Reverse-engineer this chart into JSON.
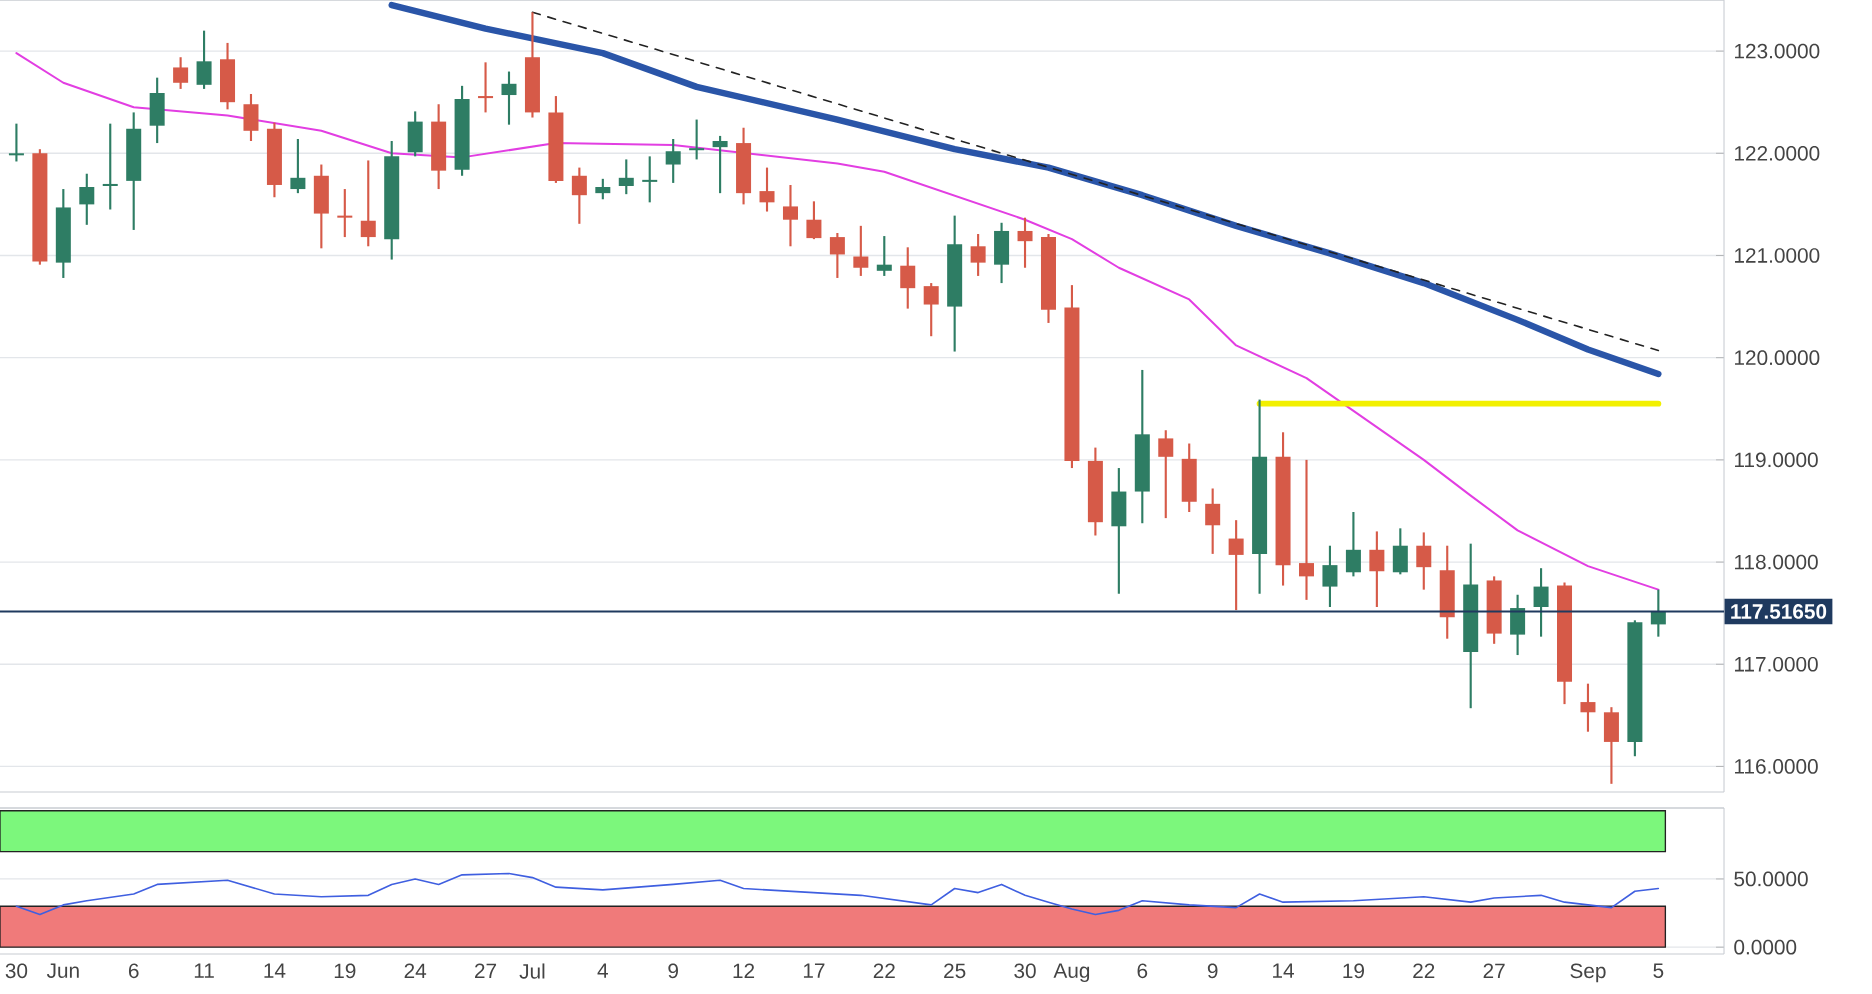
{
  "chart_data": [
    {
      "type": "candlestick",
      "categories": [
        null,
        null,
        null,
        null,
        null,
        null,
        null,
        null,
        null,
        null,
        null,
        null,
        null,
        null,
        null,
        null,
        null,
        null,
        null,
        null,
        null,
        null,
        null,
        null,
        null,
        null,
        null,
        null,
        null,
        null,
        null,
        null,
        null,
        null,
        null,
        null,
        null,
        null,
        null,
        null,
        null,
        null,
        null,
        null,
        null,
        null,
        null,
        null,
        null,
        null,
        null,
        null,
        null,
        null,
        null,
        null,
        null,
        null,
        null,
        null,
        null,
        null,
        null,
        null,
        null,
        null,
        null,
        null,
        null,
        null,
        null
      ],
      "ohlc": [
        [
          121.98,
          122.29,
          121.92,
          122.0
        ],
        [
          122.0,
          122.04,
          120.91,
          120.94
        ],
        [
          120.93,
          121.65,
          120.78,
          121.47
        ],
        [
          121.5,
          121.8,
          121.3,
          121.67
        ],
        [
          121.68,
          122.29,
          121.45,
          121.7
        ],
        [
          121.73,
          122.4,
          121.25,
          122.24
        ],
        [
          122.27,
          122.74,
          122.1,
          122.59
        ],
        [
          122.84,
          122.94,
          122.63,
          122.69
        ],
        [
          122.67,
          123.2,
          122.63,
          122.9
        ],
        [
          122.92,
          123.08,
          122.43,
          122.5
        ],
        [
          122.48,
          122.58,
          122.12,
          122.22
        ],
        [
          122.24,
          122.3,
          121.57,
          121.69
        ],
        [
          121.65,
          122.14,
          121.61,
          121.76
        ],
        [
          121.78,
          121.89,
          121.07,
          121.41
        ],
        [
          121.39,
          121.65,
          121.18,
          121.37
        ],
        [
          121.34,
          121.93,
          121.09,
          121.18
        ],
        [
          121.16,
          122.12,
          120.96,
          121.97
        ],
        [
          122.01,
          122.41,
          121.97,
          122.31
        ],
        [
          122.31,
          122.48,
          121.65,
          121.83
        ],
        [
          121.84,
          122.66,
          121.78,
          122.53
        ],
        [
          122.56,
          122.89,
          122.4,
          122.54
        ],
        [
          122.57,
          122.8,
          122.28,
          122.68
        ],
        [
          122.94,
          123.38,
          122.35,
          122.4
        ],
        [
          122.4,
          122.56,
          121.71,
          121.73
        ],
        [
          121.78,
          121.86,
          121.31,
          121.59
        ],
        [
          121.61,
          121.75,
          121.55,
          121.67
        ],
        [
          121.68,
          121.94,
          121.6,
          121.76
        ],
        [
          121.72,
          121.97,
          121.52,
          121.74
        ],
        [
          121.89,
          122.14,
          121.71,
          122.02
        ],
        [
          122.03,
          122.33,
          121.94,
          122.05
        ],
        [
          122.06,
          122.17,
          121.61,
          122.12
        ],
        [
          122.1,
          122.25,
          121.5,
          121.61
        ],
        [
          121.63,
          121.86,
          121.43,
          121.52
        ],
        [
          121.48,
          121.69,
          121.09,
          121.35
        ],
        [
          121.35,
          121.53,
          121.16,
          121.17
        ],
        [
          121.18,
          121.22,
          120.78,
          121.01
        ],
        [
          120.99,
          121.29,
          120.8,
          120.88
        ],
        [
          120.85,
          121.19,
          120.8,
          120.91
        ],
        [
          120.9,
          121.08,
          120.48,
          120.68
        ],
        [
          120.7,
          120.73,
          120.21,
          120.52
        ],
        [
          120.5,
          121.39,
          120.06,
          121.11
        ],
        [
          121.09,
          121.21,
          120.8,
          120.93
        ],
        [
          120.91,
          121.32,
          120.73,
          121.24
        ],
        [
          121.24,
          121.37,
          120.88,
          121.14
        ],
        [
          121.18,
          121.21,
          120.34,
          120.47
        ],
        [
          120.49,
          120.71,
          118.92,
          118.99
        ],
        [
          118.99,
          119.12,
          118.26,
          118.39
        ],
        [
          118.35,
          118.92,
          117.69,
          118.69
        ],
        [
          118.69,
          119.88,
          118.38,
          119.25
        ],
        [
          119.21,
          119.29,
          118.43,
          119.03
        ],
        [
          119.01,
          119.16,
          118.49,
          118.59
        ],
        [
          118.57,
          118.72,
          118.08,
          118.36
        ],
        [
          118.23,
          118.41,
          117.53,
          118.07
        ],
        [
          118.08,
          119.59,
          117.69,
          119.03
        ],
        [
          119.03,
          119.27,
          117.77,
          117.97
        ],
        [
          117.99,
          119.0,
          117.63,
          117.86
        ],
        [
          117.76,
          118.16,
          117.56,
          117.97
        ],
        [
          117.9,
          118.49,
          117.86,
          118.12
        ],
        [
          118.12,
          118.3,
          117.56,
          117.91
        ],
        [
          117.9,
          118.33,
          117.88,
          118.16
        ],
        [
          118.16,
          118.29,
          117.73,
          117.95
        ],
        [
          117.92,
          118.16,
          117.25,
          117.46
        ],
        [
          117.12,
          118.18,
          116.57,
          117.78
        ],
        [
          117.82,
          117.86,
          117.2,
          117.3
        ],
        [
          117.29,
          117.68,
          117.09,
          117.55
        ],
        [
          117.56,
          117.94,
          117.27,
          117.76
        ],
        [
          117.77,
          117.8,
          116.61,
          116.83
        ],
        [
          116.63,
          116.81,
          116.34,
          116.53
        ],
        [
          116.53,
          116.58,
          115.83,
          116.24
        ],
        [
          116.24,
          117.43,
          116.1,
          117.41
        ],
        [
          117.39,
          117.73,
          117.27,
          117.52
        ]
      ],
      "colors": [
        "#2e7d64",
        "#d65a48",
        "#2e7d64",
        "#2e7d64",
        "#2e7d64",
        "#2e7d64",
        "#2e7d64",
        "#d65a48",
        "#2e7d64",
        "#d65a48",
        "#d65a48",
        "#d65a48",
        "#2e7d64",
        "#d65a48",
        "#d65a48",
        "#d65a48",
        "#2e7d64",
        "#2e7d64",
        "#d65a48",
        "#2e7d64",
        "#d65a48",
        "#2e7d64",
        "#d65a48",
        "#d65a48",
        "#d65a48",
        "#2e7d64",
        "#2e7d64",
        "#2e7d64",
        "#2e7d64",
        "#2e7d64",
        "#2e7d64",
        "#d65a48",
        "#d65a48",
        "#d65a48",
        "#d65a48",
        "#d65a48",
        "#d65a48",
        "#2e7d64",
        "#d65a48",
        "#d65a48",
        "#2e7d64",
        "#d65a48",
        "#2e7d64",
        "#d65a48",
        "#d65a48",
        "#d65a48",
        "#d65a48",
        "#2e7d64",
        "#2e7d64",
        "#d65a48",
        "#d65a48",
        "#d65a48",
        "#d65a48",
        "#2e7d64",
        "#d65a48",
        "#d65a48",
        "#2e7d64",
        "#2e7d64",
        "#d65a48",
        "#2e7d64",
        "#d65a48",
        "#d65a48",
        "#2e7d64",
        "#d65a48",
        "#2e7d64",
        "#2e7d64",
        "#d65a48",
        "#d65a48",
        "#d65a48",
        "#2e7d64",
        "#2e7d64"
      ],
      "series": [
        {
          "type": "line",
          "color": "#e23ee2",
          "values": [
            122.98,
            null,
            122.69,
            null,
            null,
            122.45,
            null,
            null,
            null,
            122.37,
            null,
            null,
            null,
            122.22,
            null,
            null,
            122.0,
            null,
            null,
            121.96,
            null,
            null,
            null,
            122.1,
            null,
            null,
            null,
            null,
            122.08,
            null,
            null,
            null,
            null,
            null,
            null,
            121.9,
            null,
            121.82,
            null,
            null,
            null,
            null,
            null,
            121.35,
            null,
            121.16,
            null,
            120.88,
            null,
            null,
            120.57,
            null,
            120.12,
            null,
            null,
            119.8,
            null,
            null,
            null,
            null,
            119.0,
            null,
            118.65,
            null,
            118.31,
            null,
            null,
            117.96,
            null,
            null,
            117.73
          ]
        },
        {
          "type": "line",
          "color": "#2a55a8",
          "values": [
            null,
            null,
            null,
            null,
            null,
            null,
            null,
            null,
            null,
            null,
            null,
            null,
            null,
            null,
            null,
            null,
            123.45,
            null,
            null,
            null,
            123.22,
            null,
            null,
            null,
            null,
            122.98,
            null,
            null,
            null,
            122.65,
            null,
            null,
            null,
            null,
            null,
            122.33,
            null,
            null,
            null,
            null,
            122.04,
            null,
            null,
            null,
            121.86,
            null,
            null,
            null,
            121.59,
            null,
            null,
            null,
            121.29,
            null,
            null,
            null,
            121.02,
            null,
            null,
            null,
            120.73,
            null,
            null,
            null,
            120.37,
            null,
            null,
            120.08,
            null,
            null,
            119.84
          ]
        },
        {
          "type": "line",
          "color": "#222222",
          "line_style": "dashed",
          "values": [
            null,
            null,
            null,
            null,
            null,
            null,
            null,
            null,
            null,
            null,
            null,
            null,
            null,
            null,
            null,
            null,
            null,
            null,
            null,
            null,
            null,
            null,
            123.38,
            null,
            null,
            null,
            null,
            null,
            null,
            null,
            null,
            null,
            null,
            null,
            null,
            null,
            null,
            null,
            null,
            null,
            null,
            null,
            null,
            null,
            null,
            null,
            null,
            null,
            null,
            null,
            null,
            null,
            null,
            null,
            null,
            null,
            null,
            null,
            null,
            null,
            null,
            null,
            null,
            null,
            null,
            null,
            null,
            null,
            null,
            null,
            120.07
          ]
        },
        {
          "type": "line",
          "color": "#f2f000",
          "values": [
            null,
            null,
            null,
            null,
            null,
            null,
            null,
            null,
            null,
            null,
            null,
            null,
            null,
            null,
            null,
            null,
            null,
            null,
            null,
            null,
            null,
            null,
            null,
            null,
            null,
            null,
            null,
            null,
            null,
            null,
            null,
            null,
            null,
            null,
            null,
            null,
            null,
            null,
            null,
            null,
            null,
            null,
            null,
            null,
            null,
            null,
            null,
            null,
            null,
            null,
            null,
            null,
            null,
            119.55,
            null,
            null,
            null,
            null,
            null,
            null,
            null,
            null,
            null,
            null,
            null,
            null,
            null,
            null,
            null,
            null,
            119.55
          ]
        }
      ],
      "ylim": [
        115.75,
        123.5
      ],
      "yticks": [
        {
          "value": 116,
          "label": "116.0000"
        },
        {
          "value": 117,
          "label": "117.0000"
        },
        {
          "value": 118,
          "label": "118.0000"
        },
        {
          "value": 119,
          "label": "119.0000"
        },
        {
          "value": 120,
          "label": "120.0000"
        },
        {
          "value": 121,
          "label": "121.0000"
        },
        {
          "value": 122,
          "label": "122.0000"
        },
        {
          "value": 123,
          "label": "123.0000"
        }
      ],
      "ref_lines": [
        {
          "axis": "y",
          "value": 117.5165,
          "label": "117.51650",
          "color": "#1f3a5f"
        }
      ],
      "grid": "y",
      "tick_labels": "y"
    },
    {
      "type": "line",
      "categories": [
        "30",
        null,
        "Jun",
        null,
        null,
        "6",
        null,
        null,
        "11",
        null,
        null,
        "14",
        null,
        null,
        "19",
        null,
        null,
        "24",
        null,
        null,
        "27",
        null,
        "Jul",
        null,
        null,
        "4",
        null,
        null,
        "9",
        null,
        null,
        "12",
        null,
        null,
        "17",
        null,
        null,
        "22",
        null,
        null,
        "25",
        null,
        null,
        "30",
        null,
        "Aug",
        null,
        null,
        "6",
        null,
        null,
        "9",
        null,
        null,
        "14",
        null,
        null,
        "19",
        null,
        null,
        "22",
        null,
        null,
        "27",
        null,
        null,
        null,
        "Sep",
        null,
        null,
        "5"
      ],
      "series": [
        {
          "color": "#3f5fe0",
          "values": [
            30,
            24,
            31,
            34,
            null,
            39,
            46,
            null,
            null,
            49,
            null,
            39,
            null,
            37,
            null,
            38,
            46,
            50,
            46,
            53,
            null,
            54,
            51,
            44,
            null,
            42,
            null,
            null,
            46,
            null,
            49,
            43,
            null,
            null,
            null,
            null,
            38,
            null,
            null,
            31,
            43,
            40,
            46,
            38,
            33,
            28,
            24,
            27,
            34,
            null,
            31,
            null,
            29,
            39,
            33,
            null,
            null,
            34,
            null,
            null,
            37,
            null,
            33,
            36,
            null,
            38,
            33,
            null,
            29,
            41,
            43
          ]
        }
      ],
      "ylim": [
        -5,
        102
      ],
      "yticks": [
        {
          "value": 0,
          "label": "0.0000"
        },
        {
          "value": 50,
          "label": "50.0000"
        }
      ],
      "bands": [
        {
          "axis": "y",
          "from": 70,
          "to": 100,
          "color": "#7cf77c"
        },
        {
          "axis": "y",
          "from": 0,
          "to": 30,
          "color": "#f07a7a"
        }
      ],
      "grid": "y"
    }
  ]
}
